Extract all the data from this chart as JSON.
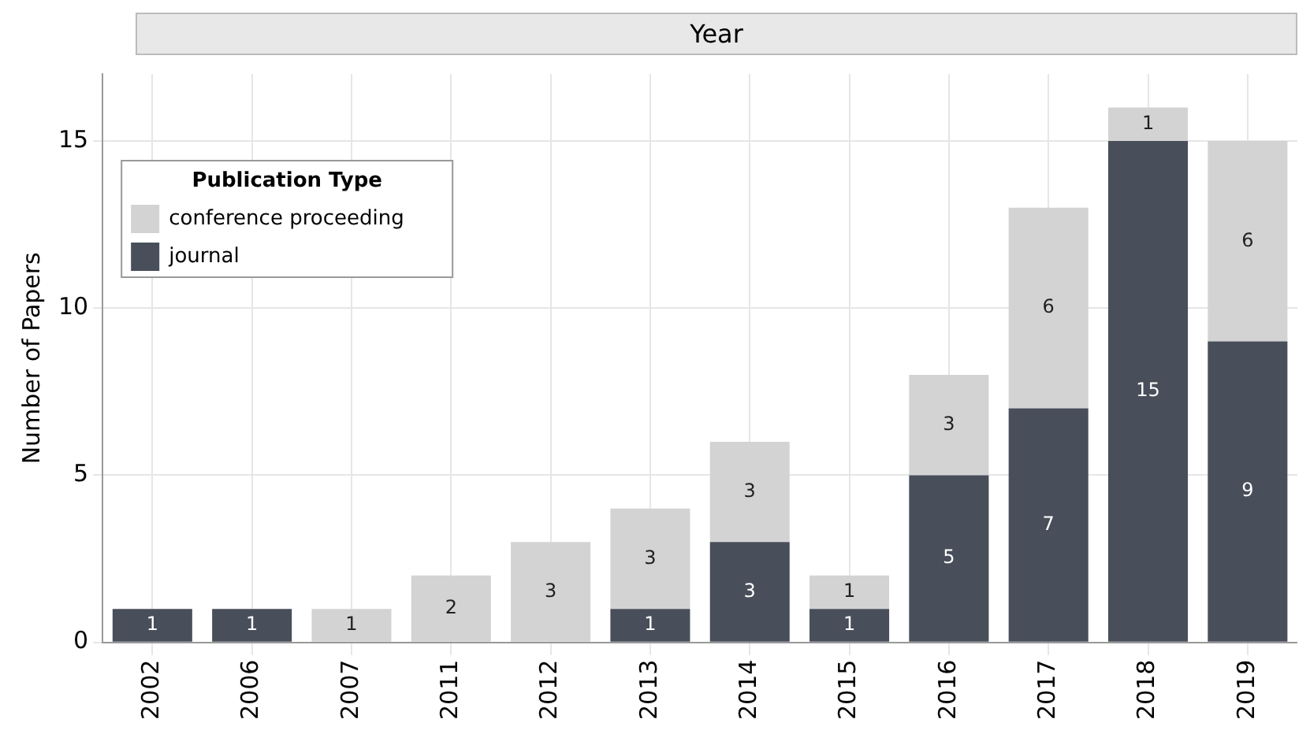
{
  "chart_data": {
    "type": "bar",
    "xlabel": "Year",
    "ylabel": "Number of Papers",
    "legend_title": "Publication Type",
    "categories": [
      "2002",
      "2006",
      "2007",
      "2011",
      "2012",
      "2013",
      "2014",
      "2015",
      "2016",
      "2017",
      "2018",
      "2019"
    ],
    "series": [
      {
        "name": "journal",
        "color": "#484e5a",
        "values": [
          1,
          1,
          null,
          null,
          null,
          1,
          3,
          1,
          5,
          7,
          15,
          9
        ]
      },
      {
        "name": "conference proceeding",
        "color": "#d3d3d3",
        "values": [
          null,
          null,
          1,
          2,
          3,
          3,
          3,
          1,
          3,
          6,
          1,
          6
        ]
      }
    ],
    "stacked": true,
    "ylim": [
      0,
      17
    ],
    "yticks": [
      0,
      5,
      10,
      15
    ],
    "grid": true,
    "legend": "top left",
    "data_labels": true
  }
}
